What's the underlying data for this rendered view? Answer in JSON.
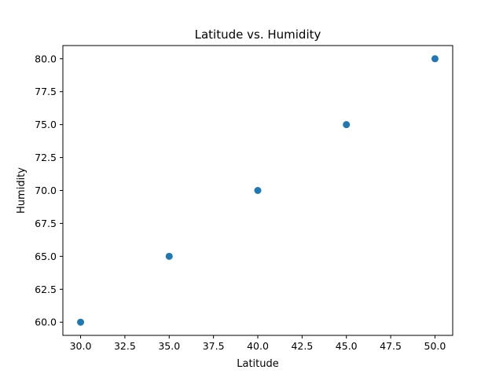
{
  "chart_data": {
    "type": "scatter",
    "title": "Latitude vs. Humidity",
    "xlabel": "Latitude",
    "ylabel": "Humidity",
    "x": [
      30,
      35,
      40,
      45,
      50
    ],
    "y": [
      60,
      65,
      70,
      75,
      80
    ],
    "xlim": [
      29,
      51
    ],
    "ylim": [
      59,
      81
    ],
    "xticks": [
      "30.0",
      "32.5",
      "35.0",
      "37.5",
      "40.0",
      "42.5",
      "45.0",
      "47.5",
      "50.0"
    ],
    "yticks": [
      "60.0",
      "62.5",
      "65.0",
      "67.5",
      "70.0",
      "72.5",
      "75.0",
      "77.5",
      "80.0"
    ],
    "grid": false,
    "marker_color": "#1f77b4"
  }
}
